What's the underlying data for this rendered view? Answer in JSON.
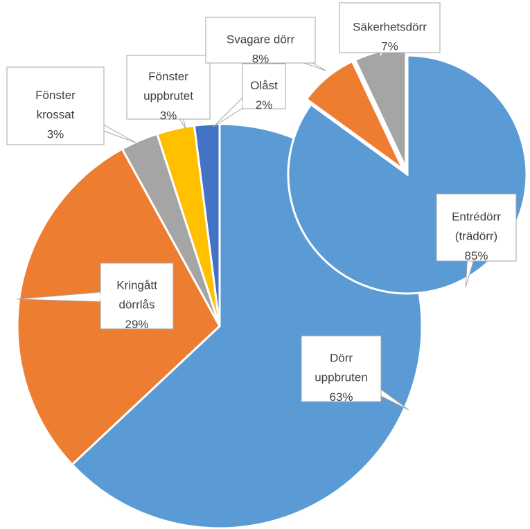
{
  "chart_data": [
    {
      "type": "pie",
      "categories": [
        "Dörr uppbruten",
        "Kringått dörrlås",
        "Fönster krossat",
        "Fönster uppbrutet",
        "Olåst"
      ],
      "values": [
        63,
        29,
        3,
        3,
        2
      ],
      "value_labels": [
        "63%",
        "29%",
        "3%",
        "3%",
        "2%"
      ],
      "colors": [
        "#5b9bd5",
        "#ed7d31",
        "#a5a5a5",
        "#ffc000",
        "#4472c4"
      ]
    },
    {
      "type": "pie",
      "categories": [
        "Entrédörr (trädörr)",
        "Svagare dörr",
        "Säkerhetsdörr"
      ],
      "values": [
        85,
        8,
        7
      ],
      "value_labels": [
        "85%",
        "8%",
        "7%"
      ],
      "colors": [
        "#5b9bd5",
        "#ed7d31",
        "#a5a5a5"
      ]
    }
  ]
}
